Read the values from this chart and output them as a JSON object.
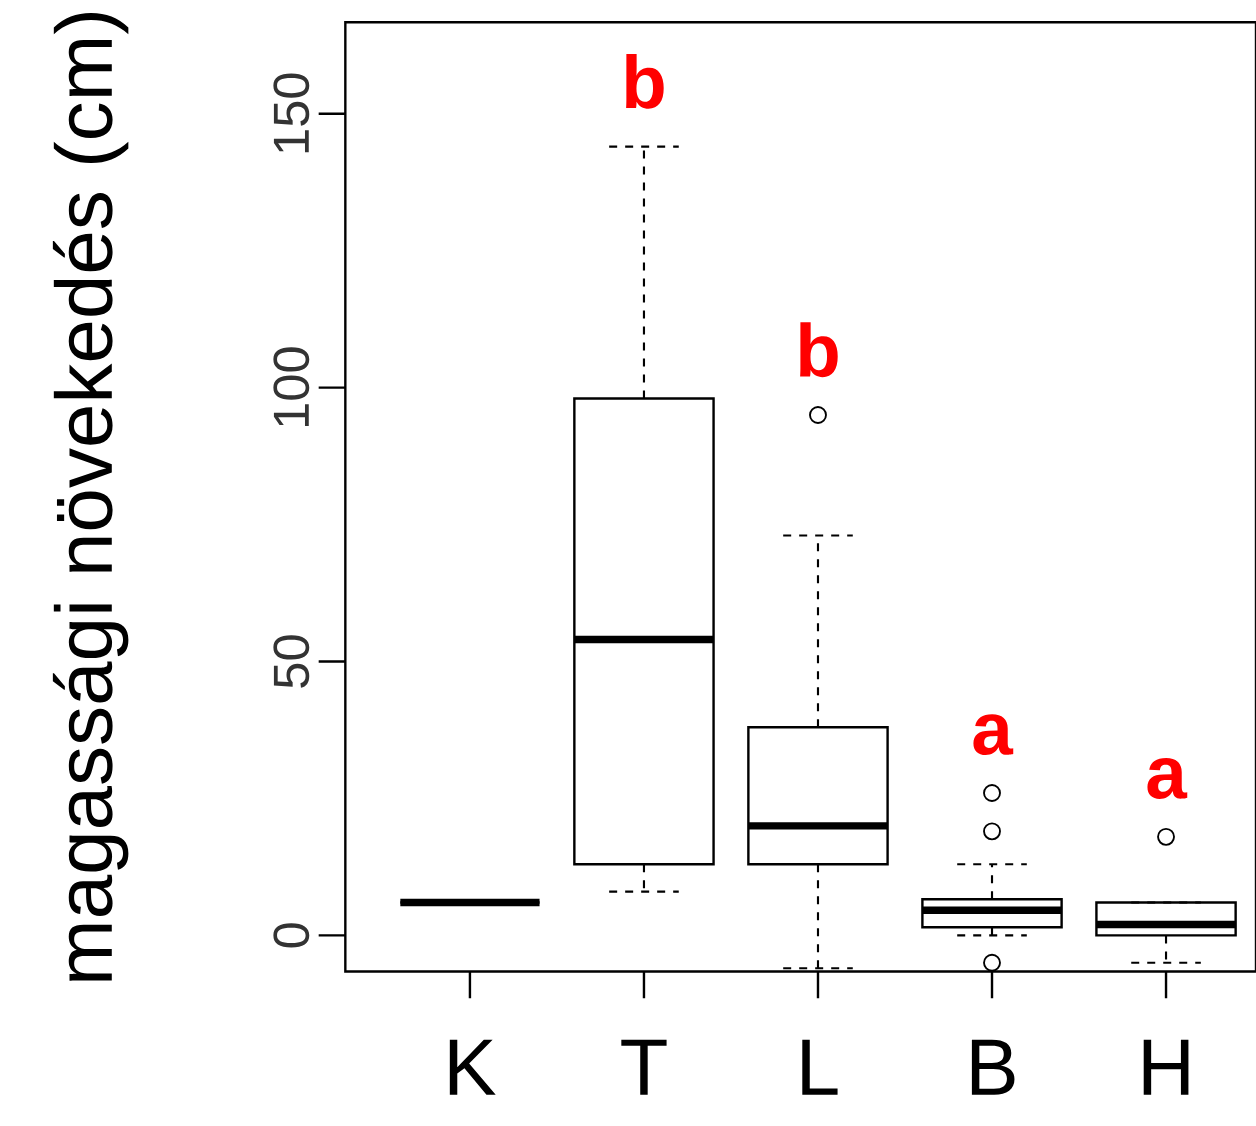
{
  "chart_data": {
    "type": "box",
    "ylabel": "magassági növekedés (cm)",
    "categories": [
      "K",
      "T",
      "L",
      "B",
      "H"
    ],
    "boxes": [
      {
        "low": 6,
        "q1": 6,
        "median": 6,
        "q3": 6,
        "high": 6
      },
      {
        "low": 8,
        "q1": 13,
        "median": 54,
        "q3": 98,
        "high": 144
      },
      {
        "low": -6,
        "q1": 13,
        "median": 20,
        "q3": 38,
        "high": 73,
        "outliers": [
          95
        ]
      },
      {
        "low": 0,
        "q1": 1.5,
        "median": 4.6,
        "q3": 6.6,
        "high": 13,
        "outliers": [
          26,
          19,
          -5
        ]
      },
      {
        "low": -5,
        "q1": 0,
        "median": 2,
        "q3": 6,
        "high": 6,
        "outliers": [
          18
        ]
      }
    ],
    "ylim": [
      -6.6,
      166.7
    ],
    "yticks": [
      0,
      50,
      100,
      150
    ],
    "annotations": [
      "b",
      "b",
      "a",
      "a"
    ]
  }
}
